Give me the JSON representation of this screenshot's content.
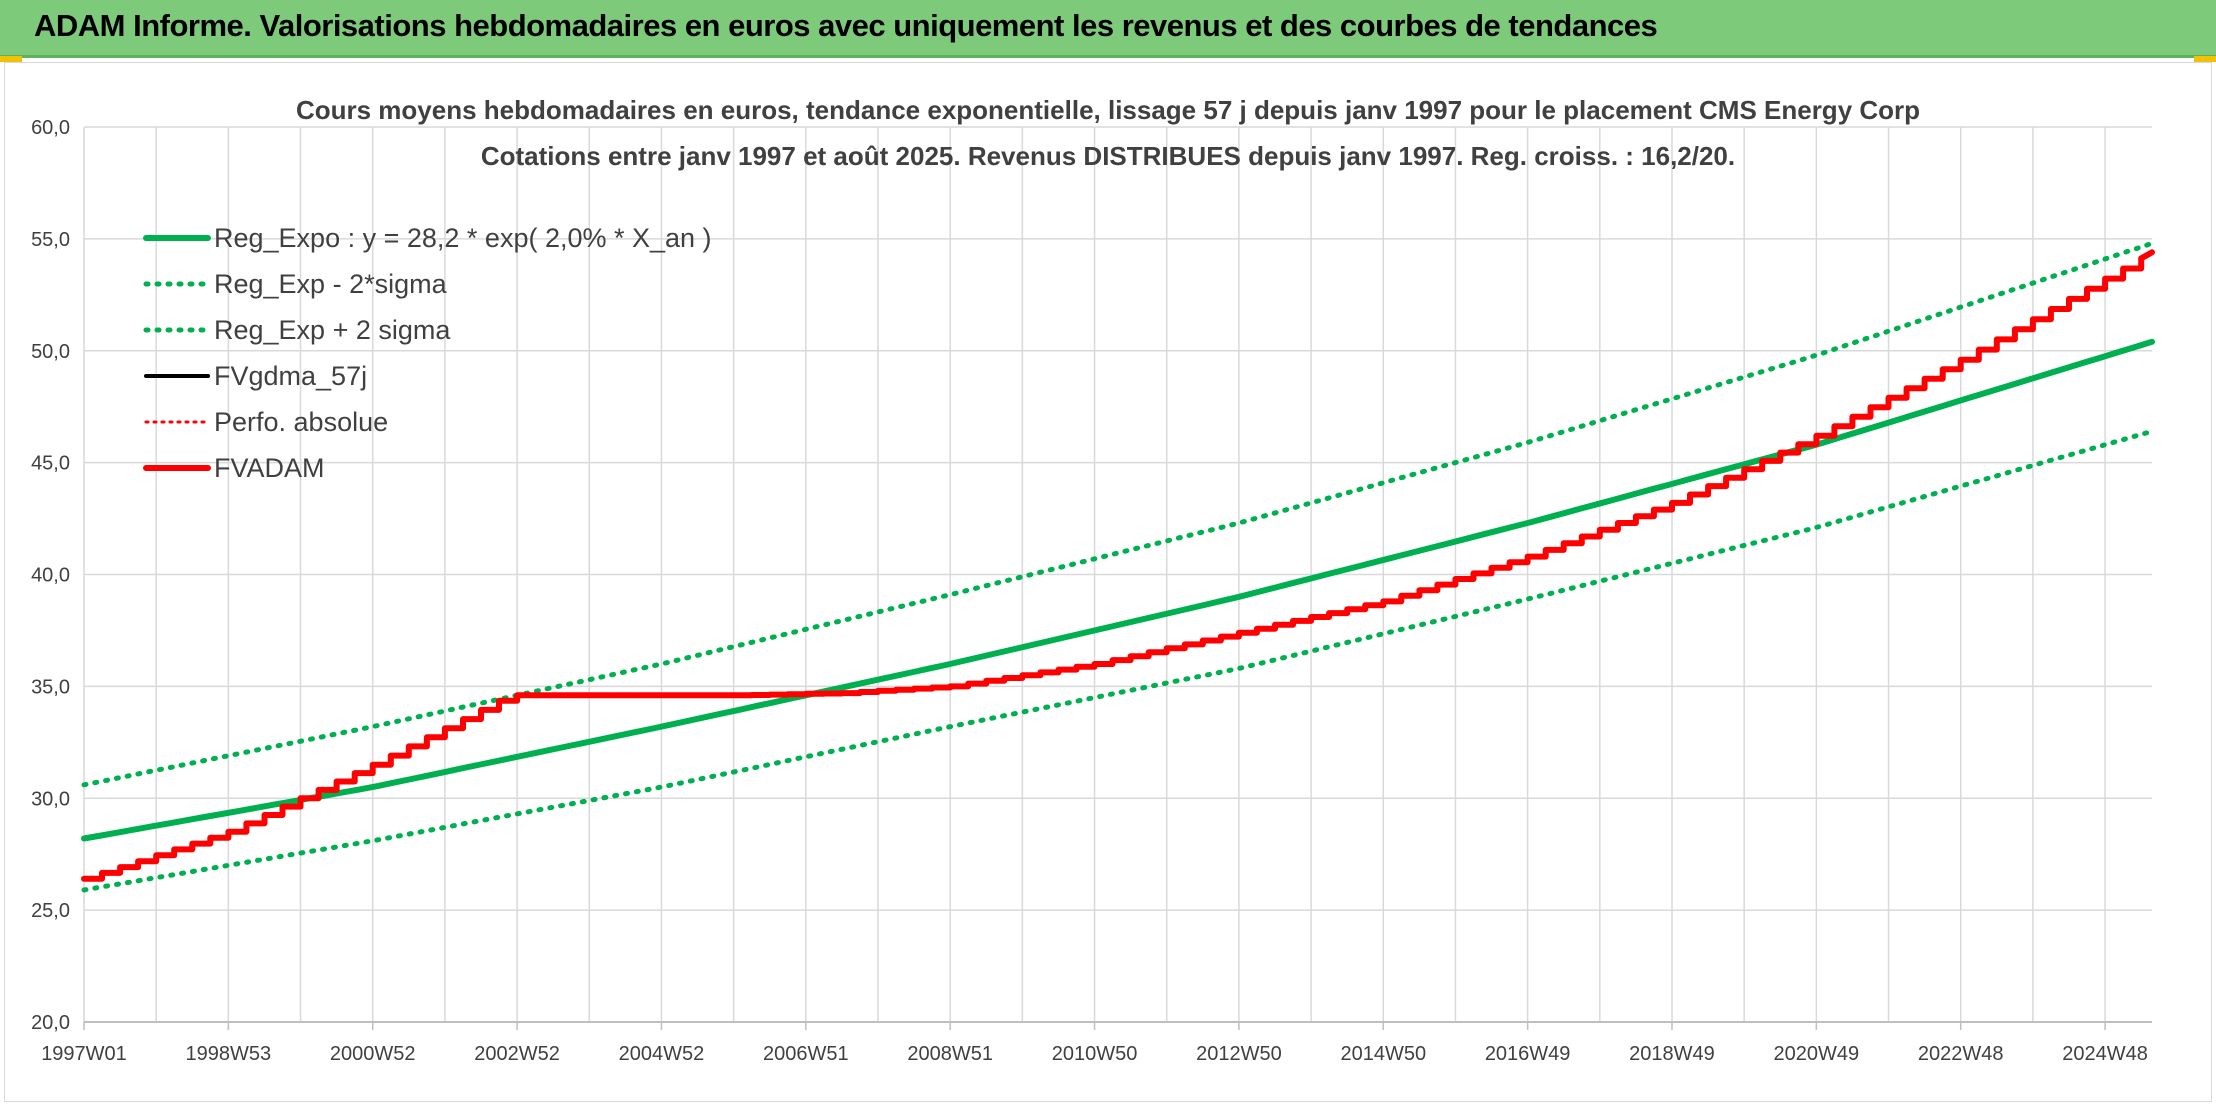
{
  "header": {
    "title": "ADAM Informe. Valorisations hebdomadaires en euros avec uniquement les revenus et des courbes de tendances"
  },
  "colors": {
    "header_bg": "#7dcb7a",
    "green": "#00b050",
    "red": "#ff0000",
    "black": "#000000",
    "grid": "#d9d9d9"
  },
  "chart_data": {
    "type": "line",
    "title": "Cours moyens hebdomadaires en euros, tendance exponentielle, lissage 57 j depuis janv 1997 pour le placement CMS Energy Corp",
    "subtitle": "Cotations entre janv 1997 et août 2025. Revenus DISTRIBUES depuis janv 1997. Reg. croiss. : 16,2/20.",
    "xlabel": "",
    "ylabel": "",
    "x_range": [
      1997.0,
      2025.65
    ],
    "ylim": [
      20,
      60
    ],
    "y_ticks": [
      "20,0",
      "25,0",
      "30,0",
      "35,0",
      "40,0",
      "45,0",
      "50,0",
      "55,0",
      "60,0"
    ],
    "x_tick_labels": [
      "1997W01",
      "1998W53",
      "2000W52",
      "2002W52",
      "2004W52",
      "2006W51",
      "2008W51",
      "2010W50",
      "2012W50",
      "2014W50",
      "2016W49",
      "2018W49",
      "2020W49",
      "2022W48",
      "2024W48"
    ],
    "x_tick_positions": [
      1997.0,
      1999.0,
      2001.0,
      2003.0,
      2005.0,
      2007.0,
      2009.0,
      2011.0,
      2013.0,
      2015.0,
      2017.0,
      2019.0,
      2021.0,
      2023.0,
      2025.0
    ],
    "grid": true,
    "legend_position": "top-left",
    "series": [
      {
        "name": "Reg_Expo : y = 28,2 * exp( 2,0% *  X_an )",
        "style": "solid-green",
        "x": [
          1997.0,
          2001.0,
          2005.0,
          2009.0,
          2013.0,
          2017.0,
          2021.0,
          2025.65
        ],
        "values": [
          28.2,
          30.5,
          33.2,
          36.0,
          39.0,
          42.3,
          45.8,
          50.4
        ]
      },
      {
        "name": "Reg_Exp - 2*sigma",
        "style": "dotted-green",
        "x": [
          1997.0,
          2001.0,
          2005.0,
          2009.0,
          2013.0,
          2017.0,
          2021.0,
          2025.65
        ],
        "values": [
          25.9,
          28.1,
          30.5,
          33.2,
          35.8,
          38.9,
          42.1,
          46.4
        ]
      },
      {
        "name": "Reg_Exp + 2 sigma",
        "style": "dotted-green",
        "x": [
          1997.0,
          2001.0,
          2005.0,
          2009.0,
          2013.0,
          2017.0,
          2021.0,
          2025.65
        ],
        "values": [
          30.6,
          33.2,
          36.0,
          39.1,
          42.3,
          45.9,
          49.8,
          54.8
        ]
      },
      {
        "name": "FVgdma_57j",
        "style": "solid-black",
        "x": [
          1997.0,
          1999.0,
          2001.0,
          2002.9,
          2006.0,
          2007.5,
          2009.0,
          2011.0,
          2013.0,
          2015.0,
          2017.0,
          2019.0,
          2020.0,
          2021.0,
          2023.0,
          2025.65
        ],
        "values": [
          26.4,
          28.5,
          31.5,
          34.6,
          34.6,
          34.7,
          35.0,
          36.0,
          37.4,
          38.8,
          40.8,
          43.2,
          44.7,
          46.2,
          49.6,
          54.4
        ]
      },
      {
        "name": "Perfo. absolue",
        "style": "dotted-red",
        "x": [
          1997.0,
          1999.0,
          2001.0,
          2002.9,
          2006.0,
          2007.5,
          2009.0,
          2011.0,
          2013.0,
          2015.0,
          2017.0,
          2019.0,
          2020.0,
          2021.0,
          2023.0,
          2025.65
        ],
        "values": [
          26.4,
          28.5,
          31.5,
          34.6,
          34.6,
          34.7,
          35.0,
          36.0,
          37.4,
          38.8,
          40.8,
          43.2,
          44.7,
          46.2,
          49.6,
          54.4
        ]
      },
      {
        "name": "FVADAM",
        "style": "solid-red",
        "x": [
          1997.0,
          1999.0,
          2001.0,
          2002.9,
          2006.0,
          2007.5,
          2009.0,
          2011.0,
          2013.0,
          2015.0,
          2017.0,
          2019.0,
          2020.0,
          2021.0,
          2023.0,
          2025.65
        ],
        "values": [
          26.4,
          28.5,
          31.5,
          34.6,
          34.6,
          34.7,
          35.0,
          36.0,
          37.4,
          38.8,
          40.8,
          43.2,
          44.7,
          46.2,
          49.6,
          54.4
        ]
      }
    ]
  }
}
